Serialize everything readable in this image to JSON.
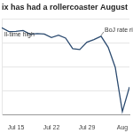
{
  "chart_data": {
    "type": "line",
    "title": "ix has had a rollercoaster August",
    "categories": [
      null,
      null,
      "Jul 15",
      null,
      null,
      null,
      null,
      "Jul 22",
      null,
      null,
      null,
      null,
      "Jul 29",
      null,
      null,
      null,
      null,
      "Aug",
      null
    ],
    "values": [
      2929,
      2897,
      2900,
      2906,
      2875,
      2880,
      2877,
      2848,
      2868,
      2843,
      2754,
      2747,
      2809,
      2831,
      2858,
      2766,
      2598,
      2228,
      2434
    ],
    "color": "#2b4a6f",
    "ylim": [
      2200,
      3000
    ],
    "yticks": [
      2200,
      2400,
      2600,
      2800,
      3000
    ],
    "grid": true,
    "tick_labels": "x",
    "annotations": [
      {
        "text": "ll-time high",
        "value": 2929
      },
      {
        "text": "BoJ rate rise",
        "value": 2858
      }
    ]
  }
}
